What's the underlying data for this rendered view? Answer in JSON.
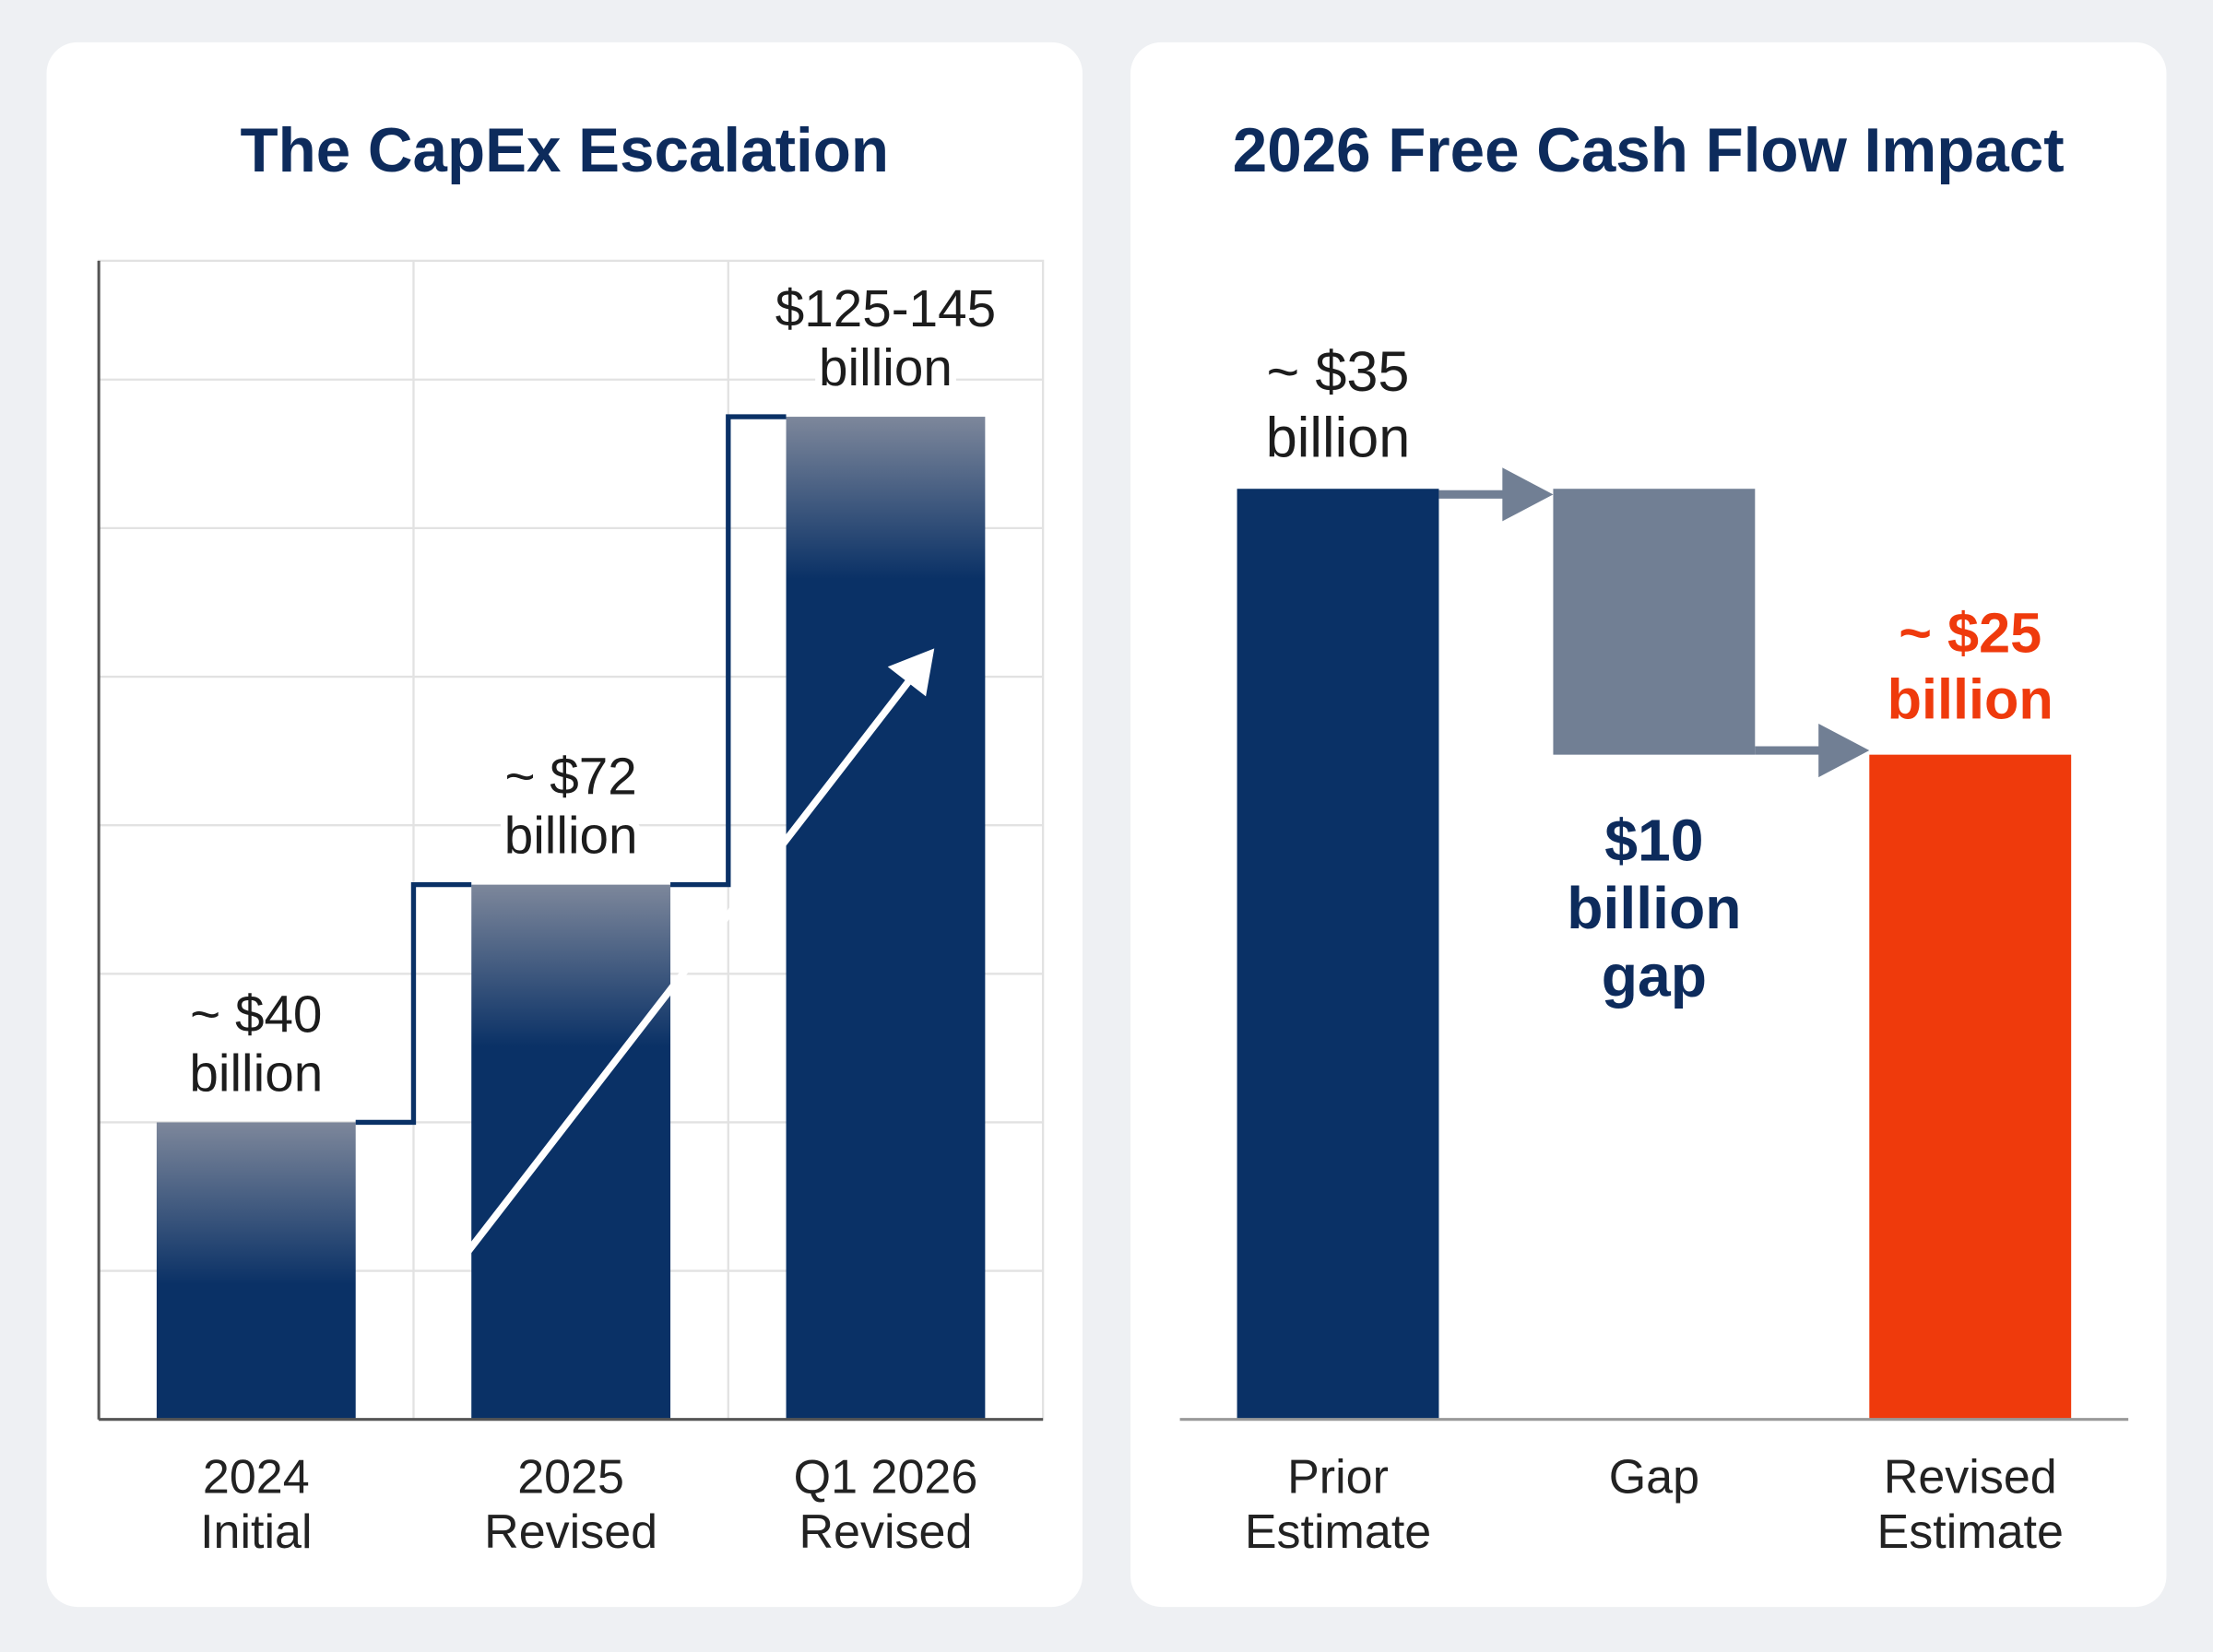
{
  "chart_data": [
    {
      "type": "bar",
      "title": "The CapEx Escalation",
      "categories": [
        "2024\nInitial",
        "2025\nRevised",
        "Q1 2026\nRevised"
      ],
      "values": [
        40,
        72,
        135
      ],
      "value_labels": [
        "~ $40\nbillion",
        "~ $72\nbillion",
        "$125-145\nbillion"
      ],
      "color": "#0a3166",
      "fade_color": "#7d879b",
      "ylim": [
        0,
        156
      ],
      "yticks": [
        0,
        20,
        40,
        60,
        80,
        100,
        120,
        140
      ],
      "grid": true
    },
    {
      "type": "waterfall",
      "title": "2026 Free Cash Flow Impact",
      "categories": [
        "Prior\nEstimate",
        "Gap",
        "Revised\nEstimate"
      ],
      "values": [
        35,
        10,
        25
      ],
      "value_labels": [
        "~ $35\nbillion",
        "$10\nbillion\ngap",
        "~ $25\nbillion"
      ],
      "colors": [
        "#0a3166",
        "#717f94",
        "#ef3a0c"
      ],
      "ylim": [
        0,
        44
      ]
    }
  ]
}
